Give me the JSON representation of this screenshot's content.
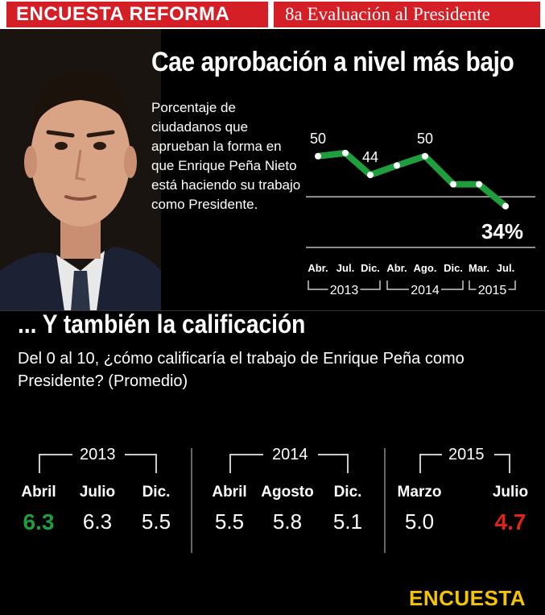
{
  "header": {
    "left_label": "ENCUESTA REFORMA",
    "right_label": "8a Evaluación al Presidente"
  },
  "section1": {
    "title": "Cae aprobación a nivel más bajo",
    "description": "Porcentaje de ciudadanos que aprueban la forma en que Enrique Peña Nieto está haciendo su trabajo como Presidente."
  },
  "section2": {
    "title": "... Y también la calificación",
    "question": "Del 0 al 10, ¿cómo calificaría el trabajo de Enrique Peña como Presidente? (Promedio)"
  },
  "colors": {
    "line": "#1f9e3e",
    "good": "#1f9e3e",
    "bad": "#e2231a",
    "header_red": "#d41f26",
    "logo": "#f5c400"
  },
  "chart_data": [
    {
      "type": "line",
      "title": "Cae aprobación a nivel más bajo",
      "categories": [
        "Abr.",
        "Jul.",
        "Dic.",
        "Abr.",
        "Ago.",
        "Dic.",
        "Mar.",
        "Jul."
      ],
      "year_groups": [
        {
          "label": "2013",
          "span": [
            "Abr.",
            "Dic."
          ]
        },
        {
          "label": "2014",
          "span": [
            "Abr.",
            "Dic."
          ]
        },
        {
          "label": "2015",
          "span": [
            "Mar.",
            "Jul."
          ]
        }
      ],
      "values": [
        50,
        51,
        44,
        47,
        50,
        41,
        41,
        34
      ],
      "data_labels": [
        {
          "index": 0,
          "text": "50"
        },
        {
          "index": 2,
          "text": "44"
        },
        {
          "index": 4,
          "text": "50"
        },
        {
          "index": 7,
          "text": "34%"
        }
      ],
      "ylim": [
        20,
        60
      ],
      "reference_line": 37
    },
    {
      "type": "table",
      "title": "... Y también la calificación",
      "groups": [
        {
          "year": "2013",
          "months": [
            "Abril",
            "Julio",
            "Dic."
          ],
          "values": [
            "6.3",
            "6.3",
            "5.5"
          ]
        },
        {
          "year": "2014",
          "months": [
            "Abril",
            "Agosto",
            "Dic."
          ],
          "values": [
            "5.5",
            "5.8",
            "5.1"
          ]
        },
        {
          "year": "2015",
          "months": [
            "Marzo",
            "Julio"
          ],
          "values": [
            "5.0",
            "4.7"
          ]
        }
      ],
      "highlight_high": {
        "group": 0,
        "index": 0
      },
      "highlight_low": {
        "group": 2,
        "index": 1
      }
    }
  ],
  "footer": {
    "logo": "ENCUESTA"
  }
}
